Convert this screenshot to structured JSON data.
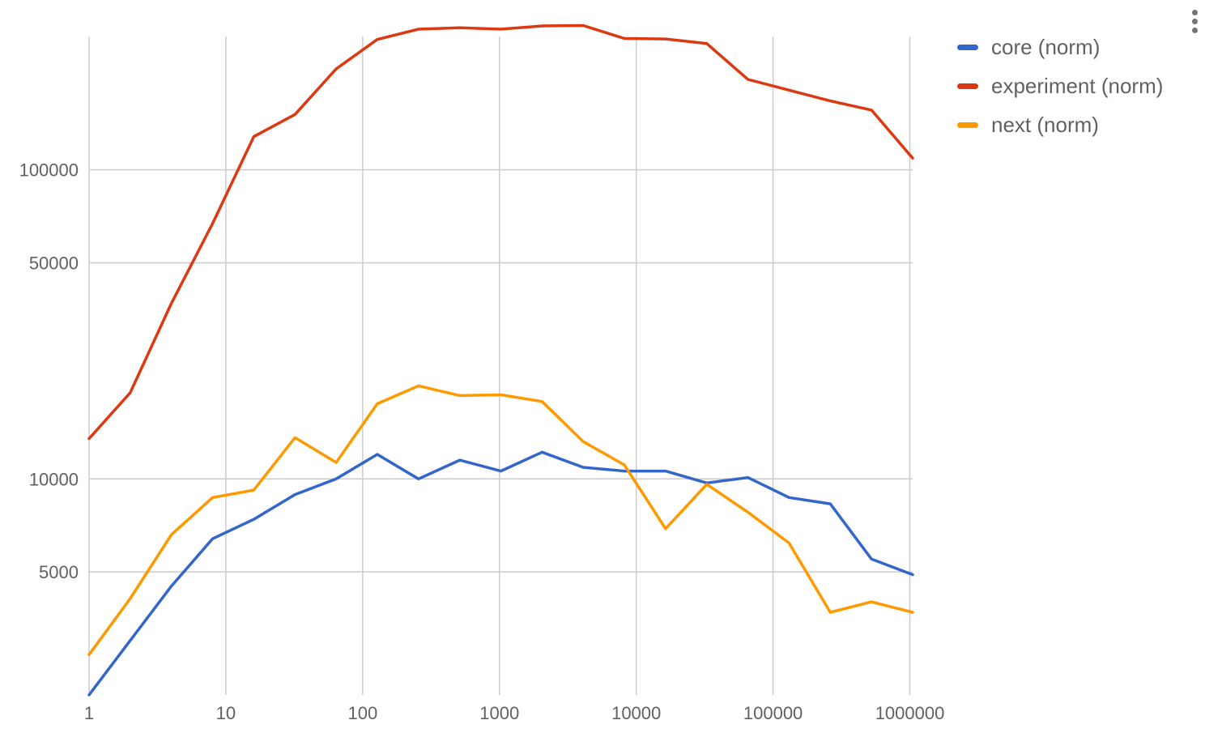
{
  "chart_data": {
    "type": "line",
    "x_scale": "log",
    "y_scale": "log",
    "grid": true,
    "legend_position": "right",
    "x": [
      1,
      2,
      4,
      8,
      16,
      32,
      64,
      128,
      256,
      512,
      1024,
      2048,
      4096,
      8192,
      16384,
      32768,
      65536,
      131072,
      262144,
      524288,
      1048576
    ],
    "xlim": [
      1,
      1048576
    ],
    "ylim": [
      2000,
      270000
    ],
    "x_ticks": [
      {
        "value": 1,
        "label": "1"
      },
      {
        "value": 10,
        "label": "10"
      },
      {
        "value": 100,
        "label": "100"
      },
      {
        "value": 1000,
        "label": "1000"
      },
      {
        "value": 10000,
        "label": "10000"
      },
      {
        "value": 100000,
        "label": "100000"
      },
      {
        "value": 1000000,
        "label": "1000000"
      }
    ],
    "y_ticks": [
      {
        "value": 5000,
        "label": "5000"
      },
      {
        "value": 10000,
        "label": "10000"
      },
      {
        "value": 50000,
        "label": "50000"
      },
      {
        "value": 100000,
        "label": "100000"
      }
    ],
    "series": [
      {
        "name": "core (norm)",
        "color": "#3366cc",
        "values": [
          2000,
          3000,
          4500,
          6400,
          7400,
          8900,
          10000,
          12000,
          10000,
          11500,
          10600,
          12200,
          10900,
          10600,
          10600,
          9700,
          10100,
          8700,
          8300,
          5500,
          4900
        ]
      },
      {
        "name": "experiment (norm)",
        "color": "#dc3912",
        "values": [
          13500,
          19000,
          37000,
          67000,
          128000,
          151000,
          212000,
          264000,
          285000,
          288000,
          285000,
          292000,
          293000,
          266000,
          265000,
          256000,
          196000,
          181000,
          167000,
          156000,
          109000
        ]
      },
      {
        "name": "next (norm)",
        "color": "#ff9900",
        "values": [
          2700,
          4100,
          6600,
          8700,
          9200,
          13600,
          11300,
          17500,
          20000,
          18600,
          18700,
          17800,
          13200,
          11100,
          6900,
          9600,
          7800,
          6200,
          3700,
          4000,
          3700
        ]
      }
    ]
  },
  "menu": {
    "icon": "more-vertical-icon"
  }
}
